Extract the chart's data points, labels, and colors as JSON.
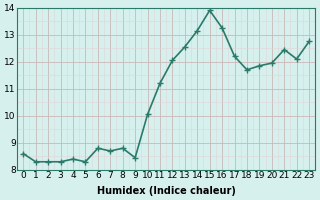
{
  "x": [
    0,
    1,
    2,
    3,
    4,
    5,
    6,
    7,
    8,
    9,
    10,
    11,
    12,
    13,
    14,
    15,
    16,
    17,
    18,
    19,
    20,
    21,
    22,
    23
  ],
  "y": [
    8.6,
    8.3,
    8.3,
    8.3,
    8.4,
    8.3,
    8.8,
    8.7,
    8.8,
    8.45,
    10.05,
    11.2,
    12.05,
    12.55,
    13.15,
    13.9,
    13.25,
    12.2,
    11.7,
    11.85,
    11.95,
    12.45,
    12.1,
    12.75
  ],
  "xlabel": "Humidex (Indice chaleur)",
  "xlim": [
    -0.5,
    23.5
  ],
  "ylim": [
    8,
    14
  ],
  "yticks": [
    8,
    9,
    10,
    11,
    12,
    13,
    14
  ],
  "xticks": [
    0,
    1,
    2,
    3,
    4,
    5,
    6,
    7,
    8,
    9,
    10,
    11,
    12,
    13,
    14,
    15,
    16,
    17,
    18,
    19,
    20,
    21,
    22,
    23
  ],
  "line_color": "#2a7a6a",
  "marker": "+",
  "marker_size": 4.0,
  "bg_color": "#d6f0ee",
  "grid_major_color": "#c9b8b8",
  "grid_minor_color": "#e2d5d5",
  "xlabel_fontsize": 7,
  "tick_fontsize": 6.5,
  "linewidth": 1.2
}
